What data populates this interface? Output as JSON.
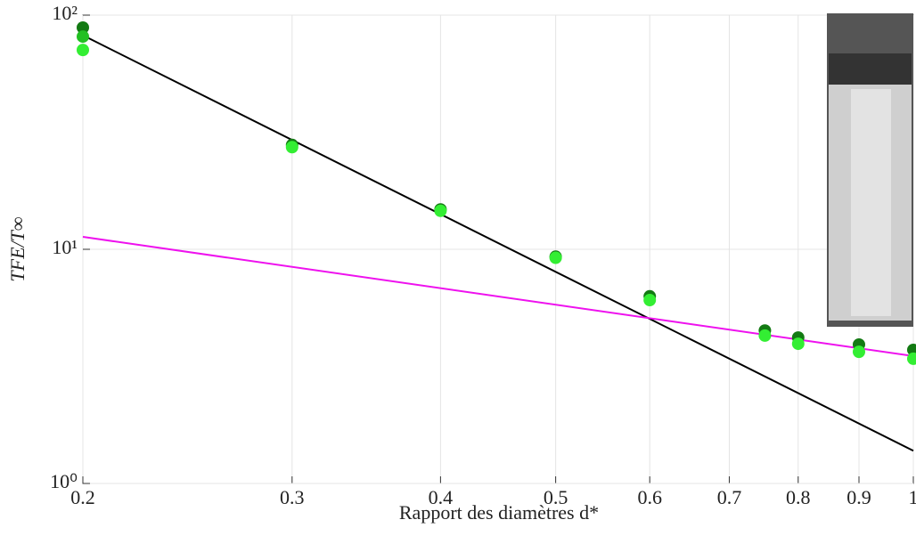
{
  "chart_data": {
    "type": "scatter",
    "xlabel": "Rapport des diamètres d*",
    "ylabel": "TFE/T∞",
    "xscale": "log",
    "yscale": "log",
    "grid": true,
    "xlim": [
      0.2,
      1
    ],
    "ylim": [
      1,
      100
    ],
    "xticks": [
      0.2,
      0.3,
      0.4,
      0.5,
      0.6,
      0.7,
      0.8,
      0.9,
      1
    ],
    "yticks": [
      {
        "value": 1,
        "label": "10⁰"
      },
      {
        "value": 10,
        "label": "10¹"
      },
      {
        "value": 100,
        "label": "10²"
      }
    ],
    "series": [
      {
        "color": "#137a13",
        "x": [
          0.2,
          0.3,
          0.4,
          0.5,
          0.6,
          0.75,
          0.8,
          0.9,
          1
        ],
        "values": [
          88.5,
          27.9,
          14.8,
          9.3,
          6.3,
          4.5,
          4.2,
          3.92,
          3.72
        ]
      },
      {
        "color": "#22c022",
        "x": [
          0.2
        ],
        "values": [
          81
        ]
      },
      {
        "color": "#33ee33",
        "x": [
          0.2,
          0.3,
          0.4,
          0.5,
          0.6,
          0.75,
          0.8,
          0.9,
          1
        ],
        "values": [
          71,
          27.3,
          14.6,
          9.2,
          6.07,
          4.28,
          3.95,
          3.65,
          3.41
        ]
      }
    ],
    "lines": [
      {
        "color": "#000000",
        "x": [
          0.2,
          1
        ],
        "values": [
          82,
          1.38
        ]
      },
      {
        "color": "#ee11ee",
        "x": [
          0.2,
          1
        ],
        "values": [
          11.3,
          3.5
        ]
      }
    ]
  }
}
